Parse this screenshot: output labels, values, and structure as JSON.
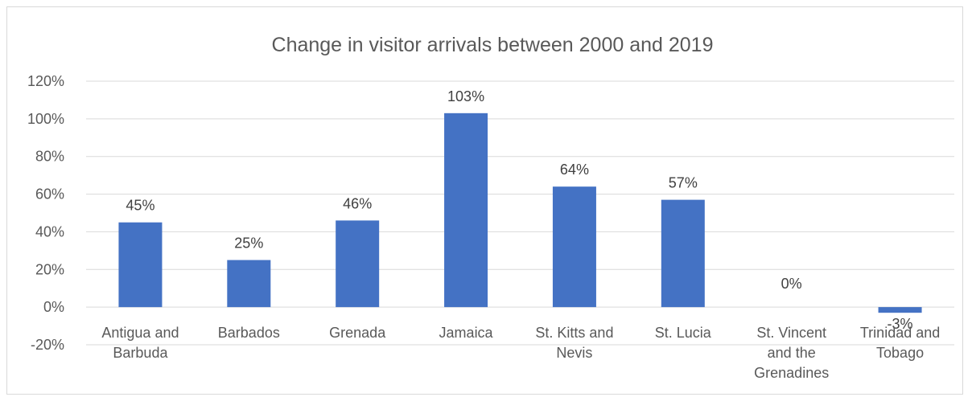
{
  "chart_data": {
    "type": "bar",
    "title": "Change in visitor arrivals between 2000 and 2019",
    "xlabel": "",
    "ylabel": "",
    "ylim": [
      -20,
      120
    ],
    "yticks": [
      -20,
      0,
      20,
      40,
      60,
      80,
      100,
      120
    ],
    "ytick_suffix": "%",
    "grid": true,
    "bar_color": "#4472C4",
    "categories": [
      "Antigua and Barbuda",
      "Barbados",
      "Grenada",
      "Jamaica",
      "St. Kitts and Nevis",
      "St. Lucia",
      "St. Vincent and the Grenadines",
      "Trinidad and Tobago"
    ],
    "category_lines": [
      [
        "Antigua and",
        "Barbuda"
      ],
      [
        "Barbados"
      ],
      [
        "Grenada"
      ],
      [
        "Jamaica"
      ],
      [
        "St. Kitts and",
        "Nevis"
      ],
      [
        "St. Lucia"
      ],
      [
        "St. Vincent",
        "and the",
        "Grenadines"
      ],
      [
        "Trinidad and",
        "Tobago"
      ]
    ],
    "values": [
      45,
      25,
      46,
      103,
      64,
      57,
      0,
      -3
    ],
    "data_labels": [
      "45%",
      "25%",
      "46%",
      "103%",
      "64%",
      "57%",
      "0%",
      "-3%"
    ]
  }
}
